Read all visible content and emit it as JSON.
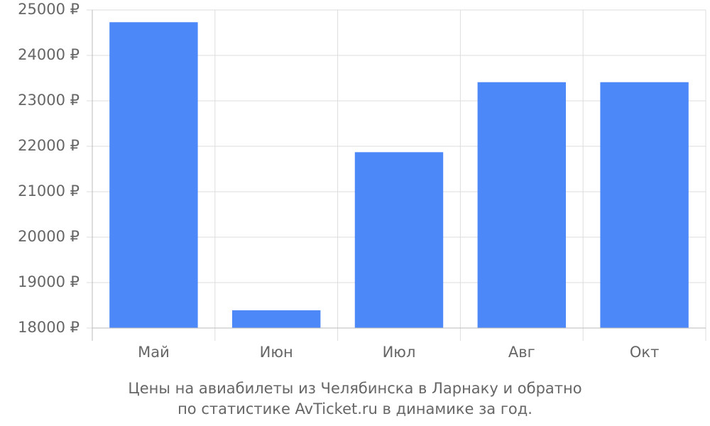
{
  "chart_data": {
    "type": "bar",
    "caption": [
      "Цены на авиабилеты из Челябинска в Ларнаку и обратно",
      "по статистике AvTicket.ru в динамике за год."
    ],
    "categories": [
      "Май",
      "Июн",
      "Июл",
      "Авг",
      "Окт"
    ],
    "values": [
      24730,
      18390,
      21870,
      23410,
      23410
    ],
    "color": "#4d88f9",
    "ylim": [
      18000,
      25000
    ],
    "yticks": [
      {
        "value": 18000,
        "label": "18000 ₽"
      },
      {
        "value": 19000,
        "label": "19000 ₽"
      },
      {
        "value": 20000,
        "label": "20000 ₽"
      },
      {
        "value": 21000,
        "label": "21000 ₽"
      },
      {
        "value": 22000,
        "label": "22000 ₽"
      },
      {
        "value": 23000,
        "label": "23000 ₽"
      },
      {
        "value": 24000,
        "label": "24000 ₽"
      },
      {
        "value": 25000,
        "label": "25000 ₽"
      }
    ],
    "grid": true
  }
}
